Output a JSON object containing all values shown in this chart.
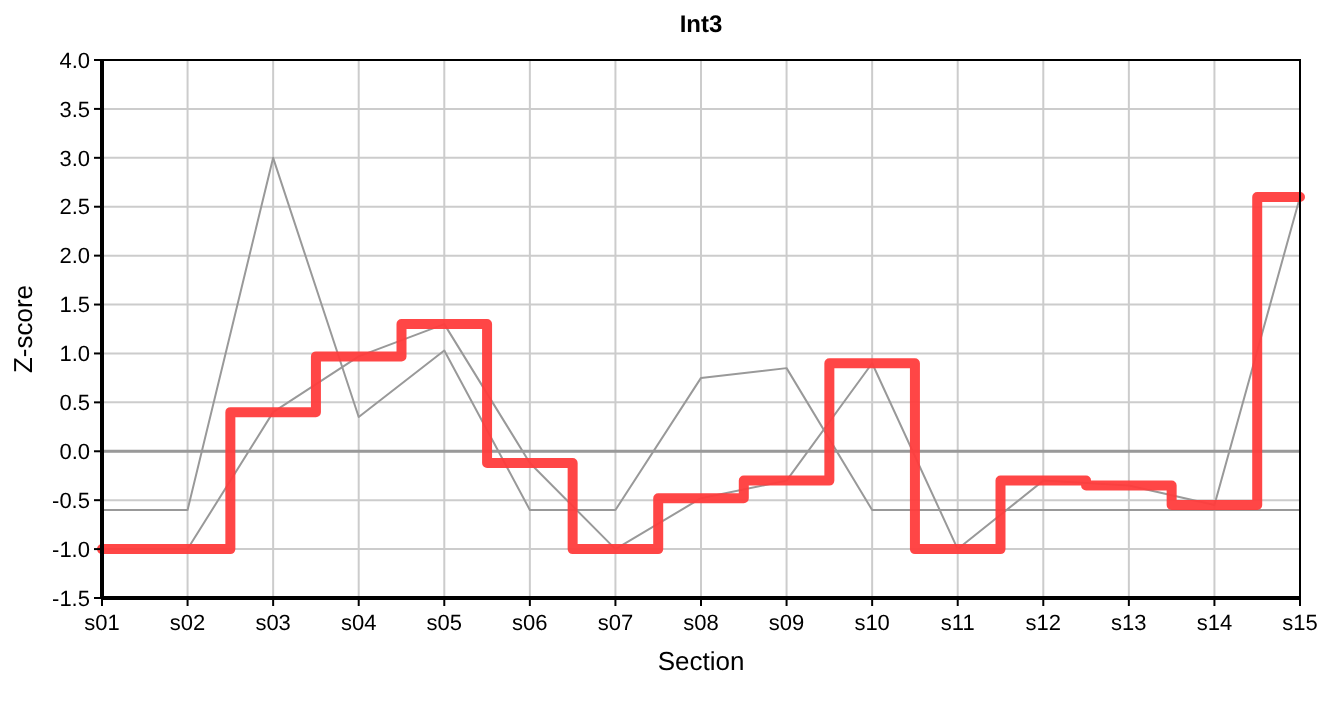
{
  "chart_data": {
    "type": "line",
    "title": "Int3",
    "xlabel": "Section",
    "ylabel": "Z-score",
    "categories": [
      "s01",
      "s02",
      "s03",
      "s04",
      "s05",
      "s06",
      "s07",
      "s08",
      "s09",
      "s10",
      "s11",
      "s12",
      "s13",
      "s14",
      "s15"
    ],
    "series": [
      {
        "color": "#999999",
        "values": [
          -0.6,
          -0.6,
          3.0,
          0.35,
          1.03,
          -0.6,
          -0.6,
          0.75,
          0.85,
          -0.6,
          -0.6,
          -0.6,
          -0.6,
          -0.6,
          -0.6
        ]
      },
      {
        "color": "#999999",
        "values": [
          -1.0,
          -1.0,
          0.4,
          0.97,
          1.3,
          -0.12,
          -1.0,
          -0.48,
          -0.3,
          0.9,
          -1.0,
          -0.3,
          -0.35,
          -0.55,
          2.6
        ]
      },
      {
        "type": "step",
        "color": "#ff3c3c",
        "values": [
          -1.0,
          -1.0,
          0.4,
          0.97,
          1.3,
          -0.12,
          -1.0,
          -0.48,
          -0.3,
          0.9,
          -1.0,
          -0.3,
          -0.35,
          -0.55,
          2.6
        ]
      }
    ],
    "ylim": [
      -1.5,
      4.0
    ],
    "yticks": [
      {
        "value": -1.5,
        "label": "-1.5"
      },
      {
        "value": -1,
        "label": "-1.0"
      },
      {
        "value": -0.5,
        "label": "-0.5"
      },
      {
        "value": 0,
        "label": "0.0"
      },
      {
        "value": 0.5,
        "label": "0.5"
      },
      {
        "value": 1,
        "label": "1.0"
      },
      {
        "value": 1.5,
        "label": "1.5"
      },
      {
        "value": 2,
        "label": "2.0"
      },
      {
        "value": 2.5,
        "label": "2.5"
      },
      {
        "value": 3,
        "label": "3.0"
      },
      {
        "value": 3.5,
        "label": "3.5"
      },
      {
        "value": 4,
        "label": "4.0"
      }
    ],
    "ref_lines": [
      {
        "axis": "y",
        "value": 0,
        "color": "#999999"
      }
    ],
    "grid": true,
    "marker": "none",
    "line_style": "solid"
  }
}
